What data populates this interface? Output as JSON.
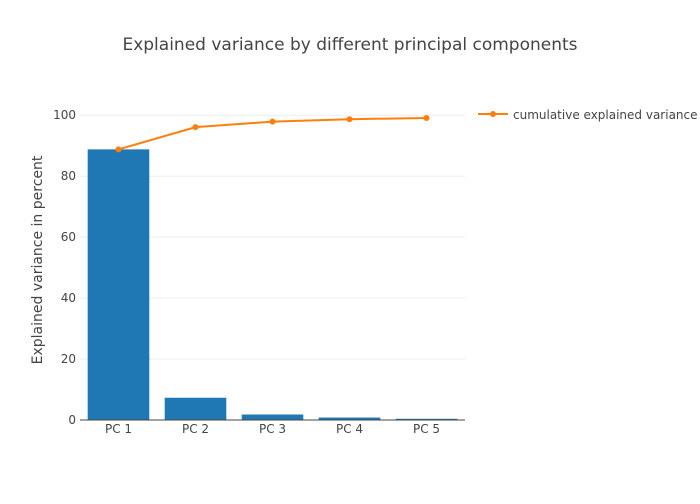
{
  "chart_data": {
    "type": "bar",
    "title": "Explained variance by different principal components",
    "xlabel": "",
    "ylabel": "Explained variance in percent",
    "categories": [
      "PC 1",
      "PC 2",
      "PC 3",
      "PC 4",
      "PC 5"
    ],
    "ylim": [
      0,
      105
    ],
    "yticks": [
      0,
      20,
      40,
      60,
      80,
      100
    ],
    "grid": true,
    "legend_position": "top-right",
    "series": [
      {
        "type": "bar",
        "values": [
          88.8,
          7.3,
          1.8,
          0.8,
          0.4
        ],
        "color": "#1f77b4"
      },
      {
        "name": "cumulative explained variance",
        "type": "line",
        "values": [
          88.8,
          96.1,
          97.9,
          98.7,
          99.1
        ],
        "color": "#ff7f0e"
      }
    ]
  }
}
